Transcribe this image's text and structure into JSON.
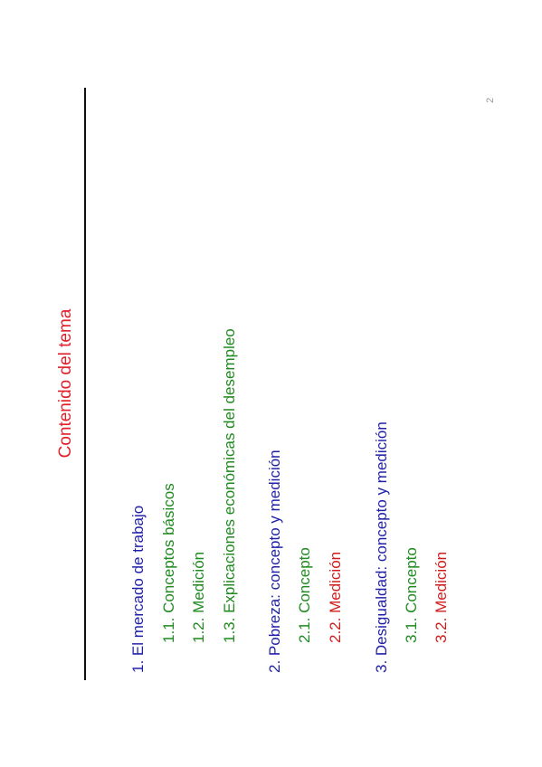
{
  "page": {
    "title": "Contenido del tema",
    "page_number": "2"
  },
  "toc": {
    "section1": {
      "label": "1. El mercado de trabajo",
      "items": [
        "1.1. Conceptos básicos",
        "1.2. Medición",
        "1.3. Explicaciones económicas del desempleo"
      ]
    },
    "section2": {
      "label": "2. Pobreza: concepto y medición",
      "items": [
        "2.1. Concepto",
        "2.2. Medición"
      ]
    },
    "section3": {
      "label": "3. Desigualdad: concepto y medición",
      "items": [
        "3.1. Concepto",
        "3.2. Medición"
      ]
    }
  },
  "colors": {
    "title": "#e0202a",
    "section": "#1f1fa8",
    "subsection_green": "#1f8a1f",
    "subsection_red": "#d01c1c"
  }
}
